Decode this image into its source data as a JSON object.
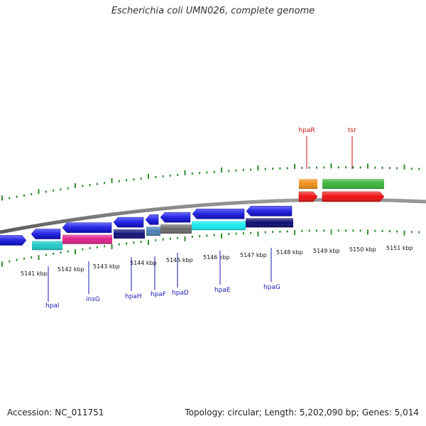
{
  "header": {
    "title": "Escherichia coli UMN026, complete genome"
  },
  "footer": {
    "accession": "Accession: NC_011751",
    "summary": "Topology: circular; Length: 5,202,090 bp; Genes: 5,014"
  },
  "map": {
    "colors": {
      "backbone": "#808080",
      "tick": "#2e8b2e",
      "forward_gene": "#2222dd",
      "label_lower": "#1a1ab4",
      "label_upper": "#cc1111"
    },
    "position_labels": [
      "5141 kbp",
      "5142 kbp",
      "5143 kbp",
      "5144 kbp",
      "5145 kbp",
      "5146 kbp",
      "5147 kbp",
      "5148 kbp",
      "5149 kbp",
      "5150 kbp",
      "5151 kbp"
    ],
    "lower_genes": [
      {
        "name": "hpaI",
        "color": "#20c8c8"
      },
      {
        "name": "insG",
        "color": "#e0208c"
      },
      {
        "name": "hpaH",
        "color": "#12127a"
      },
      {
        "name": "hpaF",
        "color": "#4a82b4"
      },
      {
        "name": "hpaD",
        "color": "#6a6a6a"
      },
      {
        "name": "hpaE",
        "color": "#18e8f0"
      },
      {
        "name": "hpaG",
        "color": "#0c0c70"
      }
    ],
    "upper_genes": [
      {
        "name": "hpaR",
        "color_top": "#f0901a",
        "color_bottom": "#ee1111"
      },
      {
        "name": "tsr",
        "color_top": "#3ab43a",
        "color_bottom": "#ee1111"
      }
    ]
  }
}
